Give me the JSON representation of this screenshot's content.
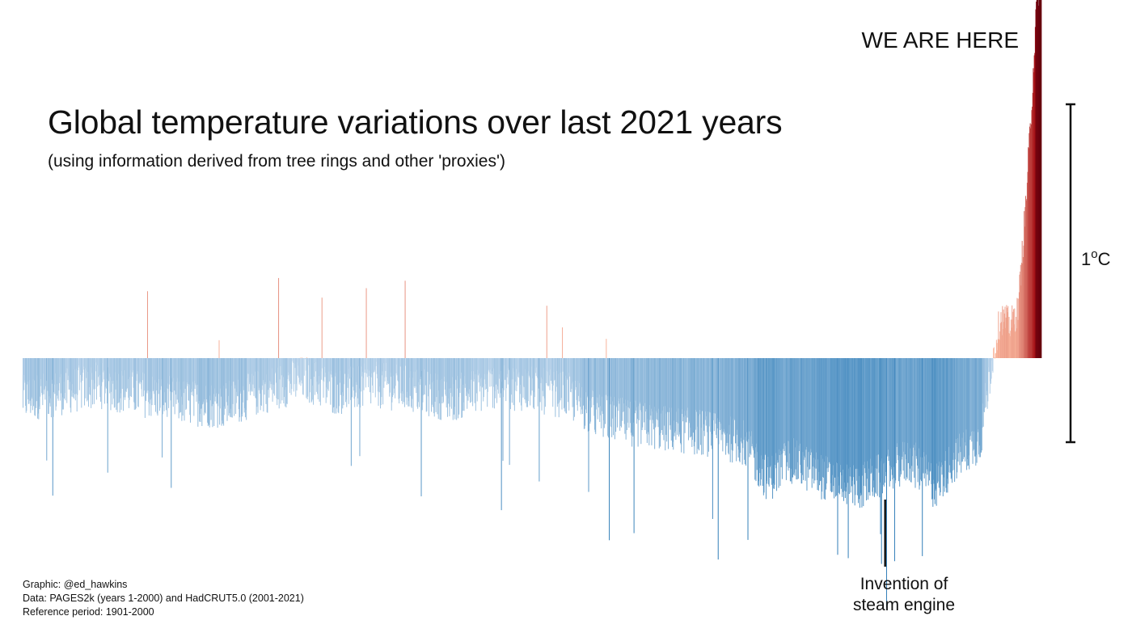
{
  "title": "Global temperature variations over last 2021 years",
  "subtitle": "(using information derived from tree rings and other 'proxies')",
  "marker_label": "WE ARE HERE",
  "scale_bar": {
    "value": "1",
    "unit_sup": "o",
    "unit": "C"
  },
  "annotation": {
    "line1": "Invention of",
    "line2": "steam engine"
  },
  "credits": [
    "Graphic: @ed_hawkins",
    "Data: PAGES2k (years 1-2000) and HadCRUT5.0 (2001-2021)",
    "Reference period: 1901-2000"
  ],
  "colors": {
    "cold_strong": "#2c7bb6",
    "cold_light": "#c6dbef",
    "warm_light": "#fcbba1",
    "warm_strong": "#a50f15",
    "dark": "#67000d",
    "ink": "#111111"
  },
  "chart_data": {
    "type": "bar",
    "x_start_year": 1,
    "x_end_year": 2021,
    "bar_count": 2021,
    "units": "°C anomaly relative to 1901-2000",
    "ylim": [
      -0.6,
      2.4
    ],
    "anchors": [
      {
        "year": 1,
        "value": -0.12
      },
      {
        "year": 80,
        "value": -0.1
      },
      {
        "year": 150,
        "value": -0.08
      },
      {
        "year": 250,
        "value": -0.11
      },
      {
        "year": 320,
        "value": -0.13
      },
      {
        "year": 400,
        "value": -0.14
      },
      {
        "year": 470,
        "value": -0.1
      },
      {
        "year": 560,
        "value": -0.06
      },
      {
        "year": 620,
        "value": -0.1
      },
      {
        "year": 700,
        "value": -0.08
      },
      {
        "year": 760,
        "value": -0.09
      },
      {
        "year": 850,
        "value": -0.12
      },
      {
        "year": 940,
        "value": -0.08
      },
      {
        "year": 1000,
        "value": -0.09
      },
      {
        "year": 1080,
        "value": -0.11
      },
      {
        "year": 1140,
        "value": -0.17
      },
      {
        "year": 1200,
        "value": -0.19
      },
      {
        "year": 1280,
        "value": -0.21
      },
      {
        "year": 1350,
        "value": -0.22
      },
      {
        "year": 1430,
        "value": -0.25
      },
      {
        "year": 1480,
        "value": -0.36
      },
      {
        "year": 1520,
        "value": -0.3
      },
      {
        "year": 1600,
        "value": -0.36
      },
      {
        "year": 1660,
        "value": -0.38
      },
      {
        "year": 1700,
        "value": -0.35
      },
      {
        "year": 1760,
        "value": -0.3
      },
      {
        "year": 1810,
        "value": -0.38
      },
      {
        "year": 1850,
        "value": -0.3
      },
      {
        "year": 1900,
        "value": -0.24
      },
      {
        "year": 1920,
        "value": -0.04
      },
      {
        "year": 1940,
        "value": 0.12
      },
      {
        "year": 1960,
        "value": 0.1
      },
      {
        "year": 1975,
        "value": 0.14
      },
      {
        "year": 1990,
        "value": 0.45
      },
      {
        "year": 2000,
        "value": 0.7
      },
      {
        "year": 2010,
        "value": 1.0
      },
      {
        "year": 2021,
        "value": 1.2
      }
    ],
    "marked_years": [
      {
        "year": 1712,
        "label": "Invention of steam engine"
      }
    ]
  }
}
